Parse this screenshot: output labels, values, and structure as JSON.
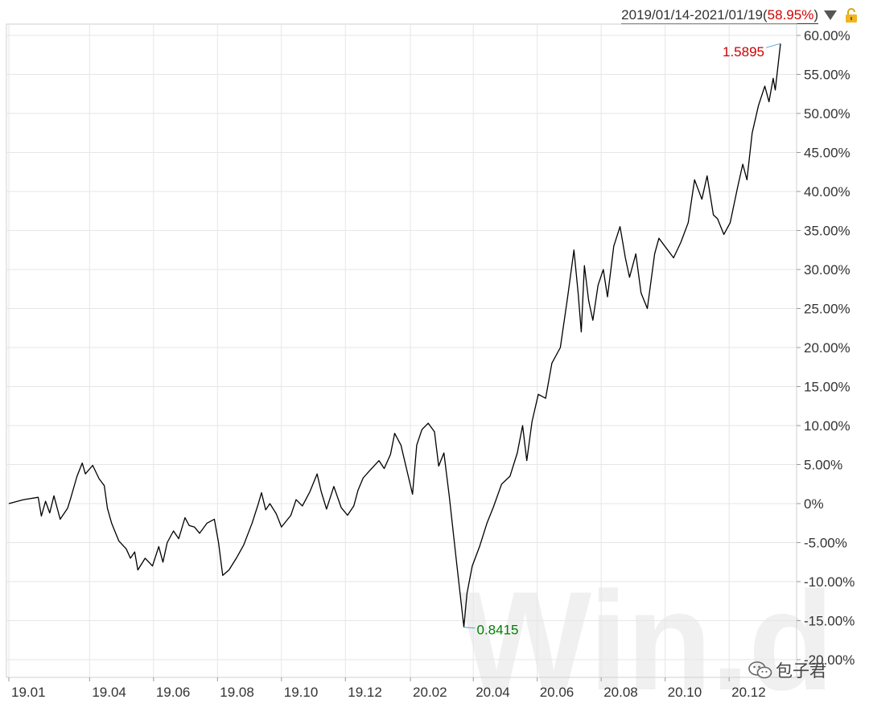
{
  "header": {
    "date_range": "2019/01/14-2021/01/19",
    "period_return_prefix": "(",
    "period_return": "58.95%",
    "period_return_suffix": ")"
  },
  "watermark": "Win.d",
  "wechat_label": "包子君",
  "icons": [
    "dropdown-triangle-icon",
    "lock-icon",
    "wechat-icon"
  ],
  "colors": {
    "line": "#000000",
    "max_label": "#cc0000",
    "min_label": "#008000",
    "marker": "#5aa0d8",
    "grid": "#e6e6e6"
  },
  "chart_data": {
    "type": "line",
    "xlabel": "",
    "ylabel": "",
    "ylim": [
      -22,
      62
    ],
    "y_ticks": [
      "60.00%",
      "55.00%",
      "50.00%",
      "45.00%",
      "40.00%",
      "35.00%",
      "30.00%",
      "25.00%",
      "20.00%",
      "15.00%",
      "10.00%",
      "5.00%",
      "0%",
      "-5.00%",
      "-10.00%",
      "-15.00%",
      "-20.00%"
    ],
    "y_tick_values": [
      60,
      55,
      50,
      45,
      40,
      35,
      30,
      25,
      20,
      15,
      10,
      5,
      0,
      -5,
      -10,
      -15,
      -20
    ],
    "x_tick_labels": [
      "19.01",
      "19.04",
      "19.06",
      "19.08",
      "19.10",
      "19.12",
      "20.02",
      "20.04",
      "20.06",
      "20.08",
      "20.10",
      "20.12"
    ],
    "x_tick_dates": [
      "2019-01-14",
      "2019-04-01",
      "2019-06-01",
      "2019-08-01",
      "2019-10-01",
      "2019-12-01",
      "2020-02-01",
      "2020-04-01",
      "2020-06-01",
      "2020-08-01",
      "2020-10-01",
      "2020-12-01"
    ],
    "x_range": [
      "2019-01-14",
      "2021-01-19"
    ],
    "grid": true,
    "max_point": {
      "date": "2021-01-19",
      "value": 58.95,
      "label": "1.5895"
    },
    "min_point": {
      "date": "2020-03-23",
      "value": -15.85,
      "label": "0.8415"
    },
    "series": [
      {
        "values": [
          [
            "2019-01-14",
            0.0
          ],
          [
            "2019-01-28",
            0.5
          ],
          [
            "2019-02-11",
            0.8
          ],
          [
            "2019-02-14",
            -1.6
          ],
          [
            "2019-02-18",
            0.3
          ],
          [
            "2019-02-22",
            -1.2
          ],
          [
            "2019-02-26",
            1.0
          ],
          [
            "2019-03-04",
            -2.0
          ],
          [
            "2019-03-11",
            -0.6
          ],
          [
            "2019-03-14",
            0.7
          ],
          [
            "2019-03-20",
            3.5
          ],
          [
            "2019-03-25",
            5.2
          ],
          [
            "2019-03-28",
            3.8
          ],
          [
            "2019-04-04",
            4.9
          ],
          [
            "2019-04-10",
            3.2
          ],
          [
            "2019-04-15",
            2.3
          ],
          [
            "2019-04-18",
            -0.6
          ],
          [
            "2019-04-22",
            -2.5
          ],
          [
            "2019-04-25",
            -3.5
          ],
          [
            "2019-04-29",
            -4.8
          ],
          [
            "2019-05-06",
            -5.8
          ],
          [
            "2019-05-10",
            -7.0
          ],
          [
            "2019-05-14",
            -6.2
          ],
          [
            "2019-05-17",
            -8.5
          ],
          [
            "2019-05-24",
            -7.0
          ],
          [
            "2019-05-31",
            -8.0
          ],
          [
            "2019-06-06",
            -5.5
          ],
          [
            "2019-06-10",
            -7.5
          ],
          [
            "2019-06-14",
            -5.0
          ],
          [
            "2019-06-20",
            -3.5
          ],
          [
            "2019-06-25",
            -4.5
          ],
          [
            "2019-07-01",
            -1.8
          ],
          [
            "2019-07-05",
            -2.8
          ],
          [
            "2019-07-10",
            -3.0
          ],
          [
            "2019-07-15",
            -3.8
          ],
          [
            "2019-07-22",
            -2.5
          ],
          [
            "2019-07-29",
            -2.0
          ],
          [
            "2019-08-02",
            -5.0
          ],
          [
            "2019-08-06",
            -9.2
          ],
          [
            "2019-08-12",
            -8.5
          ],
          [
            "2019-08-19",
            -7.0
          ],
          [
            "2019-08-26",
            -5.3
          ],
          [
            "2019-09-03",
            -2.5
          ],
          [
            "2019-09-09",
            0.0
          ],
          [
            "2019-09-12",
            1.4
          ],
          [
            "2019-09-16",
            -0.8
          ],
          [
            "2019-09-20",
            0.0
          ],
          [
            "2019-09-26",
            -1.3
          ],
          [
            "2019-10-01",
            -3.0
          ],
          [
            "2019-10-10",
            -1.5
          ],
          [
            "2019-10-15",
            0.5
          ],
          [
            "2019-10-21",
            -0.3
          ],
          [
            "2019-10-28",
            1.5
          ],
          [
            "2019-11-04",
            3.8
          ],
          [
            "2019-11-08",
            1.5
          ],
          [
            "2019-11-13",
            -0.7
          ],
          [
            "2019-11-20",
            2.2
          ],
          [
            "2019-11-27",
            -0.5
          ],
          [
            "2019-12-03",
            -1.5
          ],
          [
            "2019-12-09",
            -0.3
          ],
          [
            "2019-12-13",
            1.7
          ],
          [
            "2019-12-18",
            3.3
          ],
          [
            "2019-12-24",
            4.2
          ],
          [
            "2020-01-02",
            5.5
          ],
          [
            "2020-01-07",
            4.5
          ],
          [
            "2020-01-13",
            6.3
          ],
          [
            "2020-01-17",
            9.0
          ],
          [
            "2020-01-23",
            7.5
          ],
          [
            "2020-02-03",
            1.2
          ],
          [
            "2020-02-07",
            7.5
          ],
          [
            "2020-02-12",
            9.5
          ],
          [
            "2020-02-18",
            10.3
          ],
          [
            "2020-02-24",
            9.2
          ],
          [
            "2020-02-28",
            4.8
          ],
          [
            "2020-03-04",
            6.5
          ],
          [
            "2020-03-09",
            1.0
          ],
          [
            "2020-03-16",
            -7.5
          ],
          [
            "2020-03-23",
            -15.8
          ],
          [
            "2020-03-26",
            -11.5
          ],
          [
            "2020-03-31",
            -8.0
          ],
          [
            "2020-04-07",
            -5.5
          ],
          [
            "2020-04-14",
            -2.5
          ],
          [
            "2020-04-20",
            -0.5
          ],
          [
            "2020-04-28",
            2.5
          ],
          [
            "2020-05-06",
            3.5
          ],
          [
            "2020-05-13",
            6.5
          ],
          [
            "2020-05-18",
            10.0
          ],
          [
            "2020-05-22",
            5.5
          ],
          [
            "2020-05-27",
            10.5
          ],
          [
            "2020-06-02",
            14.0
          ],
          [
            "2020-06-09",
            13.5
          ],
          [
            "2020-06-15",
            18.0
          ],
          [
            "2020-06-23",
            20.0
          ],
          [
            "2020-06-30",
            26.5
          ],
          [
            "2020-07-06",
            32.5
          ],
          [
            "2020-07-10",
            27.0
          ],
          [
            "2020-07-13",
            22.0
          ],
          [
            "2020-07-16",
            30.5
          ],
          [
            "2020-07-20",
            26.0
          ],
          [
            "2020-07-24",
            23.5
          ],
          [
            "2020-07-29",
            28.0
          ],
          [
            "2020-08-03",
            30.0
          ],
          [
            "2020-08-07",
            26.5
          ],
          [
            "2020-08-13",
            33.0
          ],
          [
            "2020-08-19",
            35.5
          ],
          [
            "2020-08-24",
            31.5
          ],
          [
            "2020-08-28",
            29.0
          ],
          [
            "2020-09-03",
            32.0
          ],
          [
            "2020-09-08",
            27.0
          ],
          [
            "2020-09-14",
            25.0
          ],
          [
            "2020-09-21",
            32.0
          ],
          [
            "2020-09-25",
            34.0
          ],
          [
            "2020-10-09",
            31.5
          ],
          [
            "2020-10-16",
            33.5
          ],
          [
            "2020-10-23",
            36.0
          ],
          [
            "2020-10-29",
            41.5
          ],
          [
            "2020-11-05",
            39.0
          ],
          [
            "2020-11-10",
            42.0
          ],
          [
            "2020-11-16",
            37.0
          ],
          [
            "2020-11-20",
            36.5
          ],
          [
            "2020-11-26",
            34.5
          ],
          [
            "2020-12-02",
            36.0
          ],
          [
            "2020-12-09",
            40.5
          ],
          [
            "2020-12-14",
            43.5
          ],
          [
            "2020-12-18",
            41.5
          ],
          [
            "2020-12-23",
            47.5
          ],
          [
            "2020-12-29",
            51.0
          ],
          [
            "2021-01-04",
            53.5
          ],
          [
            "2021-01-08",
            51.5
          ],
          [
            "2021-01-12",
            54.5
          ],
          [
            "2021-01-14",
            53.0
          ],
          [
            "2021-01-19",
            58.95
          ]
        ]
      }
    ]
  }
}
